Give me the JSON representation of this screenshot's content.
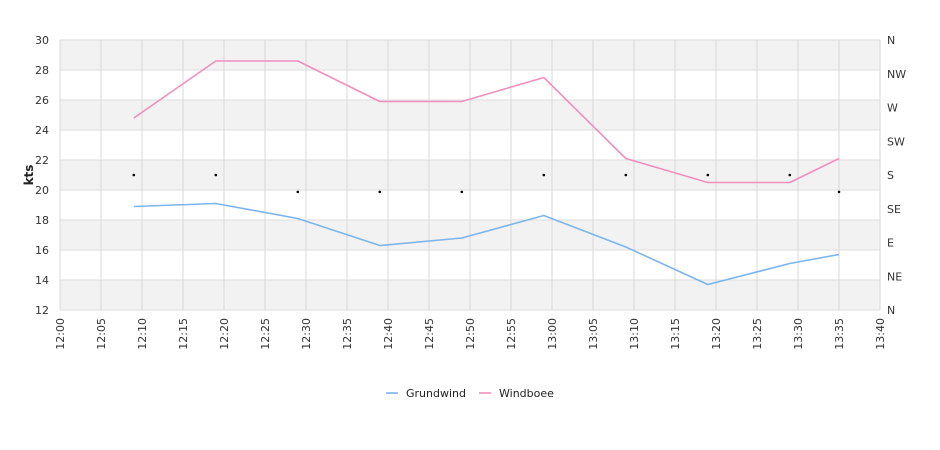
{
  "chart_data": {
    "type": "line",
    "ylabel": "kts",
    "ylim": [
      12,
      30
    ],
    "yticks": [
      12,
      14,
      16,
      18,
      20,
      22,
      24,
      26,
      28,
      30
    ],
    "x_ticks": [
      "12:00",
      "12:05",
      "12:10",
      "12:15",
      "12:20",
      "12:25",
      "12:30",
      "12:35",
      "12:40",
      "12:45",
      "12:50",
      "12:55",
      "13:00",
      "13:05",
      "13:10",
      "13:15",
      "13:20",
      "13:25",
      "13:30",
      "13:35",
      "13:40"
    ],
    "right_axis_labels": [
      "N",
      "NE",
      "E",
      "SE",
      "S",
      "SW",
      "W",
      "NW",
      "N"
    ],
    "banded_background": true,
    "series": [
      {
        "name": "Grundwind",
        "color": "#7cb5ec",
        "points": [
          {
            "t": "12:09",
            "v": 18.9
          },
          {
            "t": "12:19",
            "v": 19.1
          },
          {
            "t": "12:29",
            "v": 18.1
          },
          {
            "t": "12:39",
            "v": 16.3
          },
          {
            "t": "12:49",
            "v": 16.8
          },
          {
            "t": "12:59",
            "v": 18.3
          },
          {
            "t": "13:09",
            "v": 16.2
          },
          {
            "t": "13:19",
            "v": 13.7
          },
          {
            "t": "13:29",
            "v": 15.1
          },
          {
            "t": "13:35",
            "v": 15.7
          }
        ]
      },
      {
        "name": "Windboee",
        "color": "#f08fbd",
        "points": [
          {
            "t": "12:09",
            "v": 24.8
          },
          {
            "t": "12:19",
            "v": 28.6
          },
          {
            "t": "12:29",
            "v": 28.6
          },
          {
            "t": "12:39",
            "v": 25.9
          },
          {
            "t": "12:49",
            "v": 25.9
          },
          {
            "t": "12:59",
            "v": 27.5
          },
          {
            "t": "13:09",
            "v": 22.1
          },
          {
            "t": "13:19",
            "v": 20.5
          },
          {
            "t": "13:29",
            "v": 20.5
          },
          {
            "t": "13:35",
            "v": 22.1
          }
        ]
      }
    ],
    "direction_points": [
      {
        "t": "12:09",
        "dir": "S"
      },
      {
        "t": "12:19",
        "dir": "S"
      },
      {
        "t": "12:29",
        "dir": "SSE"
      },
      {
        "t": "12:39",
        "dir": "SSE"
      },
      {
        "t": "12:49",
        "dir": "SSE"
      },
      {
        "t": "12:59",
        "dir": "S"
      },
      {
        "t": "13:09",
        "dir": "S"
      },
      {
        "t": "13:19",
        "dir": "S"
      },
      {
        "t": "13:29",
        "dir": "S"
      },
      {
        "t": "13:35",
        "dir": "SSE"
      }
    ],
    "legend": {
      "placement": "bottom-center",
      "items": [
        "Grundwind",
        "Windboee"
      ]
    }
  }
}
